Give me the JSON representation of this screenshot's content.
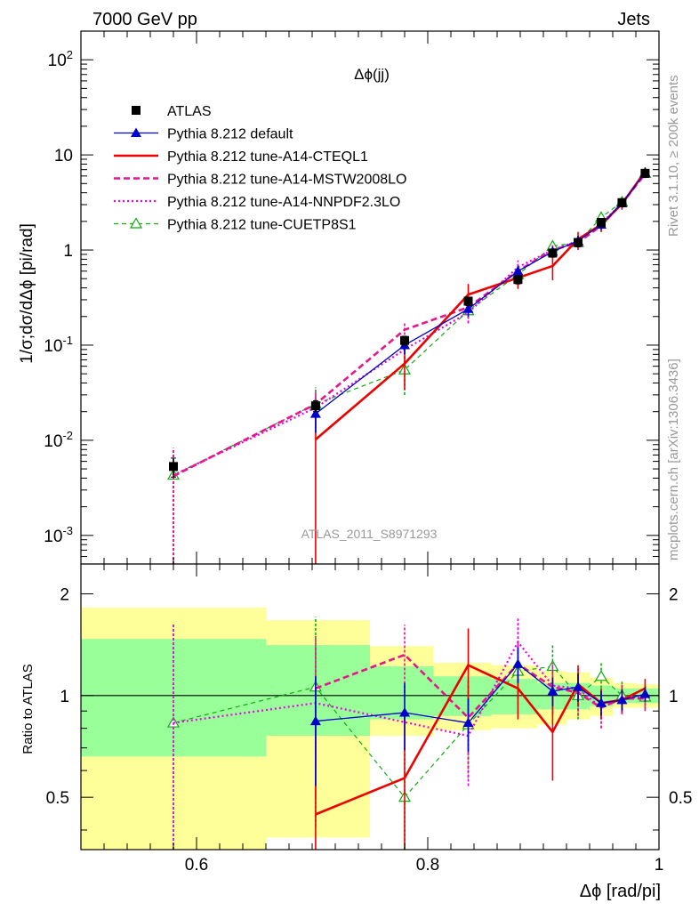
{
  "header": {
    "left": "7000 GeV pp",
    "right": "Jets"
  },
  "side_text": {
    "rivet": "Rivet 3.1.10, ≥ 200k events",
    "mcplots": "mcplots.cern.ch [arXiv:1306.3436]"
  },
  "analysis_id": "ATLAS_2011_S8971293",
  "colors": {
    "atlas": "#000000",
    "default": "#0000cc",
    "cteql1": "#ee0000",
    "mstw": "#e8168c",
    "nnpdf": "#ee00ee",
    "cuetp8s1": "#11aa11",
    "band_inner": "#99ff99",
    "band_outer": "#ffff99"
  },
  "chart_data": [
    {
      "type": "line",
      "title": "Δϕ(jj)",
      "ylabel": "1/σ;dσ/dΔϕ [pi/rad]",
      "yscale": "log",
      "xlim": [
        0.5,
        1.0
      ],
      "ylim": [
        0.0005,
        200
      ],
      "ytick_labels": [
        {
          "base": "10",
          "exp": "-3",
          "value": 0.001
        },
        {
          "base": "10",
          "exp": "-2",
          "value": 0.01
        },
        {
          "base": "10",
          "exp": "-1",
          "value": 0.1
        },
        {
          "base": "1",
          "exp": "",
          "value": 1
        },
        {
          "base": "10",
          "exp": "",
          "value": 10
        },
        {
          "base": "10",
          "exp": "2",
          "value": 100
        }
      ],
      "x": [
        0.58,
        0.703,
        0.78,
        0.835,
        0.878,
        0.908,
        0.93,
        0.95,
        0.968,
        0.988
      ],
      "legend": [
        {
          "key": "atlas",
          "label": "ATLAS"
        },
        {
          "key": "default",
          "label": "Pythia 8.212 default"
        },
        {
          "key": "cteql1",
          "label": "Pythia 8.212 tune-A14-CTEQL1"
        },
        {
          "key": "mstw",
          "label": "Pythia 8.212 tune-A14-MSTW2008LO"
        },
        {
          "key": "nnpdf",
          "label": "Pythia 8.212 tune-A14-NNPDF2.3LO"
        },
        {
          "key": "cuetp8s1",
          "label": "Pythia 8.212 tune-CUETP8S1"
        }
      ],
      "series": [
        {
          "key": "atlas",
          "name": "ATLAS",
          "values": [
            0.0053,
            0.023,
            0.112,
            0.29,
            0.49,
            0.93,
            1.2,
            1.95,
            3.15,
            6.4
          ],
          "err": [
            0.0012,
            0.003,
            0.012,
            0.03,
            0.05,
            0.09,
            0.12,
            0.2,
            0.3,
            0.6
          ]
        },
        {
          "key": "default",
          "name": "Pythia 8.212 default",
          "values": [
            null,
            0.019,
            0.1,
            0.24,
            0.6,
            0.96,
            1.25,
            1.85,
            3.1,
            6.5
          ],
          "err": [
            null,
            0.007,
            0.02,
            0.04,
            0.08,
            0.12,
            0.15,
            0.2,
            0.3,
            0.6
          ]
        },
        {
          "key": "cteql1",
          "name": "Pythia 8.212 tune-A14-CTEQL1",
          "values": [
            null,
            0.0102,
            0.064,
            0.34,
            0.51,
            0.68,
            1.3,
            1.85,
            3.05,
            6.7
          ],
          "err": [
            null,
            0.0099,
            0.03,
            0.1,
            0.12,
            0.2,
            0.25,
            0.3,
            0.4,
            0.7
          ]
        },
        {
          "key": "mstw",
          "name": "Pythia 8.212 tune-A14-MSTW2008LO",
          "values": [
            0.0042,
            0.024,
            0.145,
            0.25,
            0.6,
            1.0,
            1.2,
            1.8,
            3.1,
            6.3
          ],
          "err": [
            0.004,
            0.01,
            0.03,
            0.06,
            0.12,
            0.15,
            0.2,
            0.25,
            0.35,
            0.6
          ]
        },
        {
          "key": "nnpdf",
          "name": "Pythia 8.212 tune-A14-NNPDF2.3LO",
          "values": [
            0.0043,
            0.022,
            0.09,
            0.22,
            0.66,
            1.0,
            1.25,
            1.9,
            3.1,
            6.5
          ],
          "err": [
            0.004,
            0.009,
            0.025,
            0.05,
            0.12,
            0.15,
            0.2,
            0.25,
            0.35,
            0.6
          ]
        },
        {
          "key": "cuetp8s1",
          "name": "Pythia 8.212 tune-CUETP8S1",
          "values": [
            0.0043,
            0.024,
            0.055,
            0.23,
            0.55,
            1.1,
            1.2,
            2.2,
            3.2,
            6.4
          ],
          "err": [
            0.004,
            0.012,
            0.025,
            0.06,
            0.12,
            0.17,
            0.2,
            0.3,
            0.35,
            0.6
          ]
        }
      ]
    },
    {
      "type": "line",
      "ylabel": "Ratio to ATLAS",
      "xlabel": "Δϕ [rad/pi]",
      "xlim": [
        0.5,
        1.0
      ],
      "ylim": [
        0.35,
        2.45
      ],
      "x_ticks": [
        0.6,
        0.8,
        1.0
      ],
      "x_tick_labels": [
        "0.6",
        "0.8",
        "1"
      ],
      "y_tick_labels": [
        "0.5",
        "1",
        "2"
      ],
      "y_ticks": [
        0.5,
        1,
        2
      ],
      "bands": [
        {
          "x0": 0.5,
          "x1": 0.66,
          "inner": [
            0.66,
            1.47
          ],
          "outer": [
            0.35,
            1.82
          ]
        },
        {
          "x0": 0.66,
          "x1": 0.75,
          "inner": [
            0.76,
            1.41
          ],
          "outer": [
            0.38,
            1.67
          ]
        },
        {
          "x0": 0.75,
          "x1": 0.805,
          "inner": [
            0.85,
            1.22
          ],
          "outer": [
            0.76,
            1.4
          ]
        },
        {
          "x0": 0.805,
          "x1": 0.855,
          "inner": [
            0.87,
            1.14
          ],
          "outer": [
            0.79,
            1.25
          ]
        },
        {
          "x0": 0.855,
          "x1": 0.895,
          "inner": [
            0.88,
            1.12
          ],
          "outer": [
            0.8,
            1.23
          ]
        },
        {
          "x0": 0.895,
          "x1": 0.92,
          "inner": [
            0.91,
            1.09
          ],
          "outer": [
            0.82,
            1.18
          ]
        },
        {
          "x0": 0.92,
          "x1": 0.94,
          "inner": [
            0.91,
            1.09
          ],
          "outer": [
            0.85,
            1.17
          ]
        },
        {
          "x0": 0.94,
          "x1": 0.96,
          "inner": [
            0.93,
            1.07
          ],
          "outer": [
            0.87,
            1.13
          ]
        },
        {
          "x0": 0.96,
          "x1": 0.98,
          "inner": [
            0.95,
            1.05
          ],
          "outer": [
            0.92,
            1.09
          ]
        },
        {
          "x0": 0.98,
          "x1": 1.0,
          "inner": [
            0.95,
            1.05
          ],
          "outer": [
            0.92,
            1.08
          ]
        }
      ],
      "x": [
        0.58,
        0.703,
        0.78,
        0.835,
        0.878,
        0.908,
        0.93,
        0.95,
        0.968,
        0.988
      ],
      "series": [
        {
          "key": "default",
          "values": [
            null,
            0.84,
            0.89,
            0.83,
            1.24,
            1.03,
            1.06,
            0.95,
            0.97,
            1.01
          ],
          "err": [
            null,
            0.3,
            0.2,
            0.15,
            0.15,
            0.1,
            0.1,
            0.08,
            0.07,
            0.05
          ]
        },
        {
          "key": "cteql1",
          "values": [
            null,
            0.445,
            0.57,
            1.23,
            1.05,
            0.78,
            1.08,
            0.95,
            0.97,
            1.05
          ],
          "err": [
            null,
            0.4,
            0.3,
            0.35,
            0.2,
            0.22,
            0.15,
            0.1,
            0.08,
            0.07
          ]
        },
        {
          "key": "mstw",
          "values": [
            null,
            1.05,
            1.32,
            0.86,
            1.24,
            1.06,
            1.02,
            0.92,
            0.98,
            0.98
          ],
          "err": [
            null,
            0.45,
            0.3,
            0.25,
            0.2,
            0.18,
            0.15,
            0.12,
            0.1,
            0.08
          ]
        },
        {
          "key": "nnpdf",
          "values": [
            0.83,
            0.95,
            null,
            0.76,
            1.44,
            1.07,
            1.05,
            0.92,
            0.98,
            0.99
          ],
          "err": [
            0.8,
            0.45,
            null,
            0.22,
            0.25,
            0.18,
            0.15,
            0.12,
            0.1,
            0.08
          ]
        },
        {
          "key": "cuetp8s1",
          "values": [
            0.83,
            1.06,
            0.5,
            0.82,
            1.18,
            1.22,
            1.0,
            1.14,
            1.0,
            0.99
          ],
          "err": [
            0.8,
            0.65,
            0.2,
            0.25,
            0.2,
            0.2,
            0.15,
            0.12,
            0.1,
            0.08
          ]
        }
      ]
    }
  ]
}
